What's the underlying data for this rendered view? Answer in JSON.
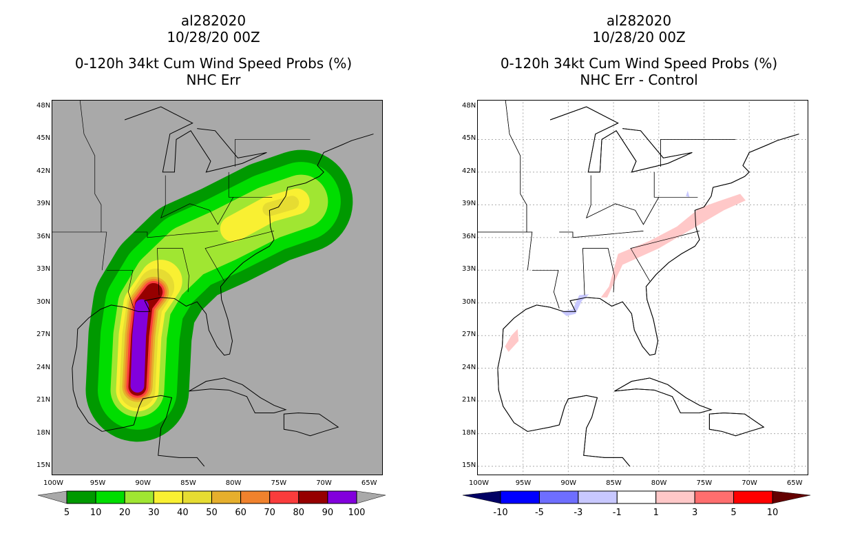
{
  "left": {
    "title_line1": "al282020",
    "title_line2": "10/28/20 00Z",
    "title_line3": "0-120h 34kt Cum Wind Speed Probs (%)",
    "title_line4": "NHC Err",
    "background": "#a9a9a9"
  },
  "right": {
    "title_line1": "al282020",
    "title_line2": "10/28/20 00Z",
    "title_line3": "0-120h 34kt Cum Wind Speed Probs (%)",
    "title_line4": "NHC Err - Control",
    "background": "#ffffff"
  },
  "axes": {
    "lat_labels": [
      "48N",
      "45N",
      "42N",
      "39N",
      "36N",
      "33N",
      "30N",
      "27N",
      "24N",
      "21N",
      "18N",
      "15N"
    ],
    "lon_labels": [
      "100W",
      "95W",
      "90W",
      "85W",
      "80W",
      "75W",
      "70W",
      "65W"
    ]
  },
  "chart_data": [
    {
      "type": "heatmap",
      "title": "0-120h 34kt Cum Wind Speed Probs (%) NHC Err",
      "levels": [
        "5",
        "10",
        "20",
        "30",
        "40",
        "50",
        "60",
        "70",
        "80",
        "90",
        "100"
      ],
      "colors": [
        "#009900",
        "#00dd00",
        "#a0e632",
        "#f9f032",
        "#e6dc32",
        "#e6af2d",
        "#f0822d",
        "#fa3c3c",
        "#960000",
        "#8200dc"
      ],
      "under_color": "#a9a9a9",
      "over_color": "#a9a9a9",
      "lon_range": [
        -100,
        -63.4
      ],
      "lat_range": [
        14,
        48.5
      ]
    },
    {
      "type": "heatmap",
      "title": "0-120h 34kt Cum Wind Speed Probs (%) NHC Err - Control",
      "levels": [
        "-10",
        "-5",
        "-3",
        "-1",
        "1",
        "3",
        "5",
        "10"
      ],
      "colors": [
        "#0000ff",
        "#6e6eff",
        "#c8c8ff",
        "#ffffff",
        "#ffc8c8",
        "#ff6e6e",
        "#ff0000"
      ],
      "under_color": "#000064",
      "over_color": "#640000",
      "lon_range": [
        -100,
        -63.4
      ],
      "lat_range": [
        14,
        48.5
      ]
    }
  ]
}
